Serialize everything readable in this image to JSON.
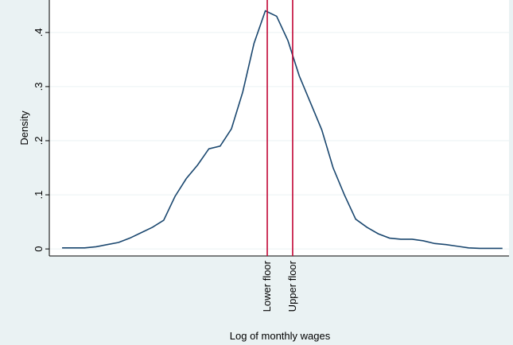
{
  "chart_data": {
    "type": "line",
    "ylabel": "Density",
    "xlabel": "Log of monthly wages",
    "x": [
      0,
      1,
      2,
      3,
      4,
      5,
      6,
      7,
      8,
      9,
      10,
      11,
      12,
      13,
      14,
      15,
      16,
      17,
      18,
      19,
      20,
      21,
      22,
      23,
      24,
      25,
      26,
      27,
      28,
      29,
      30,
      31,
      32,
      33,
      34,
      35,
      36,
      37,
      38,
      39
    ],
    "series": [
      {
        "color": "#1a476f",
        "values": [
          0.002,
          0.002,
          0.002,
          0.004,
          0.008,
          0.012,
          0.02,
          0.03,
          0.04,
          0.053,
          0.097,
          0.13,
          0.155,
          0.185,
          0.19,
          0.222,
          0.29,
          0.38,
          0.44,
          0.43,
          0.385,
          0.32,
          0.27,
          0.22,
          0.15,
          0.1,
          0.055,
          0.04,
          0.028,
          0.02,
          0.018,
          0.018,
          0.015,
          0.01,
          0.008,
          0.005,
          0.002,
          0.001,
          0.001,
          0.001
        ]
      }
    ],
    "reference_lines": [
      {
        "x": 18.17,
        "label": "Lower floor",
        "color": "#c10534"
      },
      {
        "x": 20.42,
        "label": "Upper floor",
        "color": "#c10534"
      }
    ],
    "xlim": [
      -1.13,
      39.58
    ],
    "ylim": [
      -0.013,
      0.46
    ],
    "yticks": [
      0,
      {
        "value": 0.1,
        "label": ".1"
      },
      {
        "value": 0.2,
        "label": ".2"
      },
      {
        "value": 0.3,
        "label": ".3"
      },
      {
        "value": 0.4,
        "label": ".4"
      }
    ],
    "grid": true
  }
}
